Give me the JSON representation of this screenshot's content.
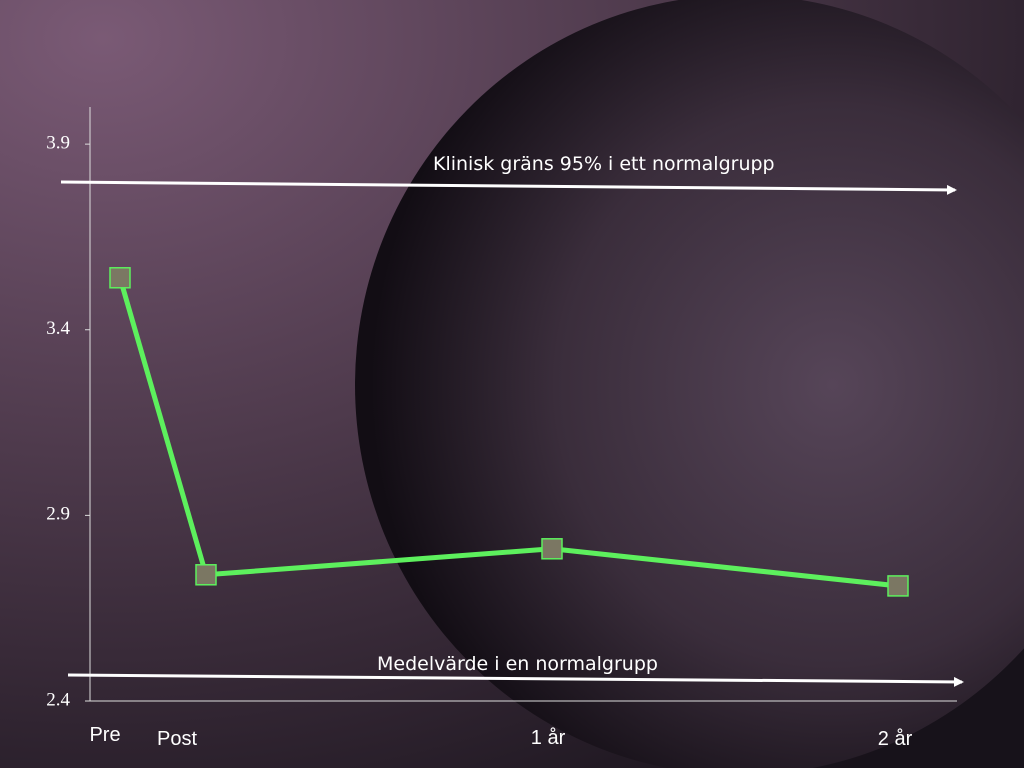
{
  "chart_data": {
    "type": "line",
    "categories": [
      "Pre",
      "Post",
      "1 år",
      "2 år"
    ],
    "values": [
      3.54,
      2.74,
      2.81,
      2.71
    ],
    "color": "#5df05d",
    "ylim": [
      2.4,
      4.0
    ],
    "yticks": [
      2.4,
      2.9,
      3.4,
      3.9
    ],
    "annotations": [
      "Klinisk gräns 95% i ett normalgrupp",
      "Medelvärde i en normalgrupp"
    ]
  }
}
